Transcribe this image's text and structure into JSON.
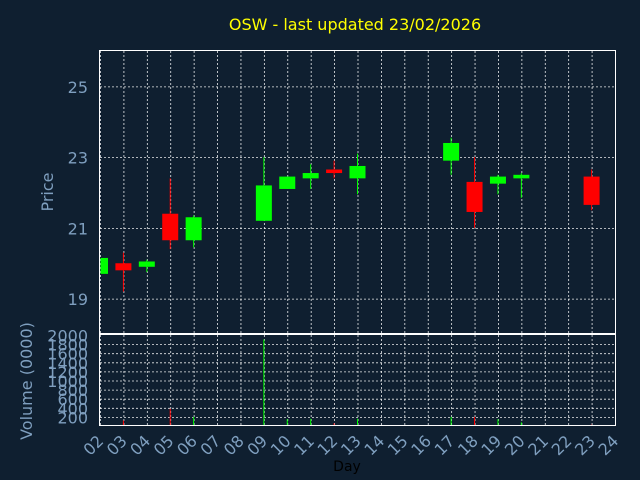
{
  "title": "OSW - last updated 23/02/2026",
  "chart_data": [
    {
      "type": "candlestick",
      "ylabel": "Price",
      "ylim": [
        18,
        26
      ],
      "yticks": [
        19,
        21,
        23,
        25
      ],
      "grid": true,
      "candles": [
        {
          "x": 2,
          "open": 19.7,
          "close": 20.15,
          "low": 19.7,
          "high": 20.15
        },
        {
          "x": 3,
          "open": 20.0,
          "close": 19.8,
          "low": 19.2,
          "high": 20.3
        },
        {
          "x": 4,
          "open": 19.9,
          "close": 20.05,
          "low": 19.75,
          "high": 20.1
        },
        {
          "x": 5,
          "open": 21.4,
          "close": 20.65,
          "low": 20.4,
          "high": 22.4
        },
        {
          "x": 6,
          "open": 20.65,
          "close": 21.3,
          "low": 20.45,
          "high": 21.35
        },
        {
          "x": 9,
          "open": 21.2,
          "close": 22.2,
          "low": 21.2,
          "high": 23.0
        },
        {
          "x": 10,
          "open": 22.1,
          "close": 22.45,
          "low": 22.1,
          "high": 22.45
        },
        {
          "x": 11,
          "open": 22.4,
          "close": 22.55,
          "low": 22.1,
          "high": 22.8
        },
        {
          "x": 12,
          "open": 22.65,
          "close": 22.55,
          "low": 22.4,
          "high": 22.9
        },
        {
          "x": 13,
          "open": 22.4,
          "close": 22.75,
          "low": 21.95,
          "high": 23.1
        },
        {
          "x": 17,
          "open": 22.9,
          "close": 23.4,
          "low": 22.5,
          "high": 23.55
        },
        {
          "x": 18,
          "open": 22.3,
          "close": 21.45,
          "low": 21.0,
          "high": 23.0
        },
        {
          "x": 19,
          "open": 22.25,
          "close": 22.45,
          "low": 21.95,
          "high": 22.5
        },
        {
          "x": 20,
          "open": 22.4,
          "close": 22.5,
          "low": 21.85,
          "high": 22.55
        },
        {
          "x": 23,
          "open": 22.45,
          "close": 21.65,
          "low": 21.5,
          "high": 22.65
        }
      ]
    },
    {
      "type": "bar",
      "ylabel": "Volume (0000)",
      "xlabel": "Day",
      "ylim": [
        0,
        2000
      ],
      "yticks": [
        0,
        200,
        400,
        600,
        800,
        1000,
        1200,
        1400,
        1600,
        1800,
        2000
      ],
      "ytick_labels": [
        "",
        "200",
        "400",
        "600",
        "800",
        "1000",
        "1200",
        "1400",
        "1600",
        "1800",
        "2000"
      ],
      "xlim": [
        2,
        24
      ],
      "xticks": [
        "02",
        "03",
        "04",
        "05",
        "06",
        "07",
        "08",
        "09",
        "10",
        "11",
        "12",
        "13",
        "14",
        "15",
        "16",
        "17",
        "18",
        "19",
        "20",
        "21",
        "22",
        "23",
        "24"
      ],
      "grid": true,
      "bars": [
        {
          "x": 2,
          "value": 20,
          "direction": "up"
        },
        {
          "x": 3,
          "value": 120,
          "direction": "down"
        },
        {
          "x": 4,
          "value": 15,
          "direction": "up"
        },
        {
          "x": 5,
          "value": 380,
          "direction": "down"
        },
        {
          "x": 6,
          "value": 200,
          "direction": "up"
        },
        {
          "x": 9,
          "value": 1900,
          "direction": "up"
        },
        {
          "x": 10,
          "value": 150,
          "direction": "up"
        },
        {
          "x": 11,
          "value": 160,
          "direction": "up"
        },
        {
          "x": 12,
          "value": 60,
          "direction": "down"
        },
        {
          "x": 13,
          "value": 160,
          "direction": "up"
        },
        {
          "x": 17,
          "value": 200,
          "direction": "up"
        },
        {
          "x": 18,
          "value": 200,
          "direction": "down"
        },
        {
          "x": 19,
          "value": 150,
          "direction": "up"
        },
        {
          "x": 20,
          "value": 80,
          "direction": "up"
        },
        {
          "x": 23,
          "value": 30,
          "direction": "down"
        }
      ]
    }
  ],
  "colors": {
    "background": "#0f1f30",
    "up": "#00ff00",
    "down": "#ff0000",
    "grid": "#ffffff",
    "tick": "#7f9fbf",
    "title": "#ffff00"
  }
}
